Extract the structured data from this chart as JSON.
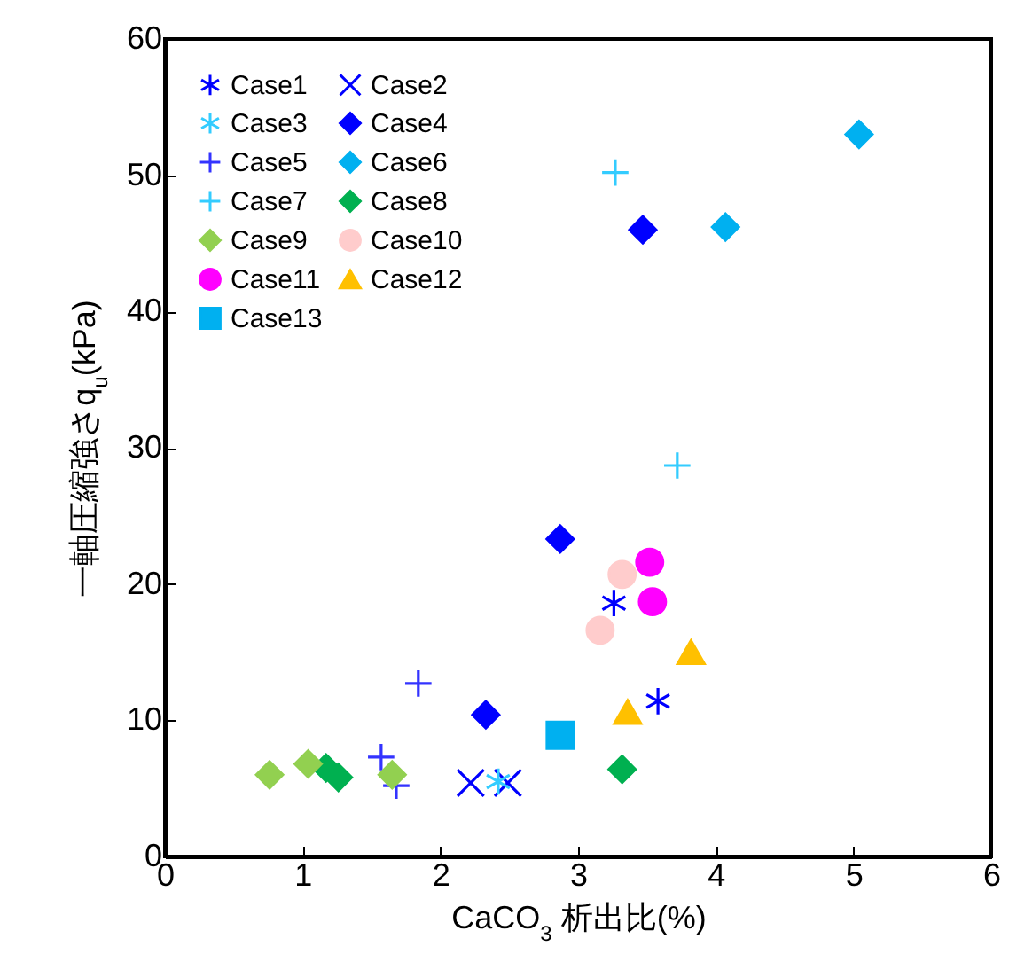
{
  "chart_data": {
    "type": "scatter",
    "xlabel": "CaCO$_{3}$ 析出比(%)",
    "ylabel": "一軸圧縮強さq$_{u}$(kPa)",
    "xlim": [
      0,
      6
    ],
    "xticks": [
      0,
      1,
      2,
      3,
      4,
      5,
      6
    ],
    "ylim": [
      0,
      60
    ],
    "yticks": [
      0,
      10,
      20,
      30,
      40,
      50,
      60
    ],
    "grid": false,
    "legend": "top left",
    "series": [
      {
        "name": "Case1",
        "color": "#0000ff",
        "marker": "cross",
        "x": [
          3.26,
          3.58
        ],
        "values": [
          18.6,
          11.4
        ]
      },
      {
        "name": "Case2",
        "color": "#0000ff",
        "marker": "x",
        "x": [
          2.22,
          2.49
        ],
        "values": [
          5.4,
          5.4
        ]
      },
      {
        "name": "Case3",
        "color": "#33ccff",
        "marker": "cross",
        "x": [
          2.42
        ],
        "values": [
          5.5
        ]
      },
      {
        "name": "Case4",
        "color": "#0000ff",
        "marker": "diamond",
        "x": [
          2.33,
          2.87,
          3.47
        ],
        "values": [
          10.4,
          23.3,
          46.0
        ]
      },
      {
        "name": "Case5",
        "color": "#3333ff",
        "marker": "plus",
        "x": [
          1.84,
          1.57,
          1.68
        ],
        "values": [
          12.7,
          7.3,
          5.2
        ]
      },
      {
        "name": "Case6",
        "color": "#00b0f0",
        "marker": "diamond",
        "x": [
          5.04,
          4.07
        ],
        "values": [
          53.0,
          46.2
        ]
      },
      {
        "name": "Case7",
        "color": "#33ccff",
        "marker": "plus",
        "x": [
          3.27,
          3.72
        ],
        "values": [
          50.2,
          28.7
        ]
      },
      {
        "name": "Case8",
        "color": "#00b050",
        "marker": "diamond",
        "x": [
          1.17,
          1.26,
          3.32
        ],
        "values": [
          6.5,
          5.8,
          6.4
        ]
      },
      {
        "name": "Case9",
        "color": "#92d050",
        "marker": "diamond",
        "x": [
          0.76,
          1.04,
          1.65
        ],
        "values": [
          6.0,
          6.8,
          6.0
        ]
      },
      {
        "name": "Case10",
        "color": "#ffcccc",
        "marker": "circle",
        "x": [
          3.32,
          3.16
        ],
        "values": [
          20.7,
          16.6
        ]
      },
      {
        "name": "Case11",
        "color": "#ff00ff",
        "marker": "circle",
        "x": [
          3.52,
          3.54
        ],
        "values": [
          21.6,
          18.7
        ]
      },
      {
        "name": "Case12",
        "color": "#ffc000",
        "marker": "triangle",
        "x": [
          3.82,
          3.36
        ],
        "values": [
          15.0,
          10.6
        ]
      },
      {
        "name": "Case13",
        "color": "#00b0f0",
        "marker": "square",
        "x": [
          2.87
        ],
        "values": [
          8.9
        ]
      }
    ]
  }
}
